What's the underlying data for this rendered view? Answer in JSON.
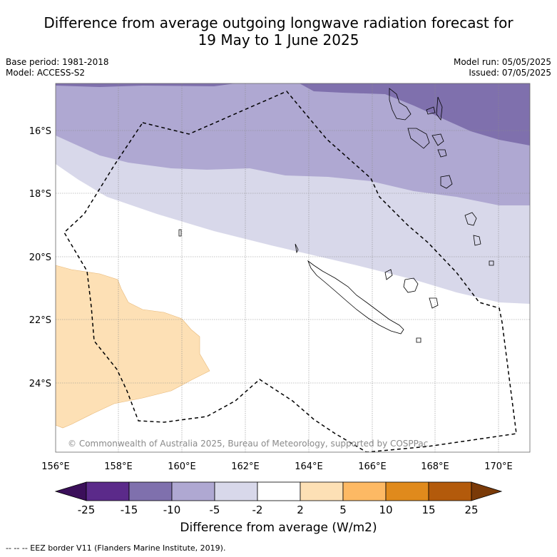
{
  "title": {
    "line1": "Difference from average outgoing longwave radiation forecast for",
    "line2": "19 May to 1 June 2025"
  },
  "meta": {
    "base_period": "Base period: 1981-2018",
    "model": "Model: ACCESS-S2",
    "model_run": "Model run: 05/05/2025",
    "issued": "Issued: 07/05/2025"
  },
  "map": {
    "lat_labels": [
      "16°S",
      "18°S",
      "20°S",
      "22°S",
      "24°S"
    ],
    "lon_labels": [
      "156°E",
      "158°E",
      "160°E",
      "162°E",
      "164°E",
      "166°E",
      "168°E",
      "170°E"
    ],
    "copyright": "© Commonwealth of Australia 2025, Bureau of Meteorology, supported by COSPPac"
  },
  "colorbar": {
    "ticks": [
      "-25",
      "-15",
      "-10",
      "-5",
      "-2",
      "2",
      "5",
      "10",
      "15",
      "25"
    ],
    "colors": [
      "#3b0f5a",
      "#5b2a8a",
      "#7f70ad",
      "#afa8d2",
      "#d8d8ea",
      "#ffffff",
      "#fde0b5",
      "#fdb964",
      "#e08a1c",
      "#b35a0b",
      "#7a3a08"
    ],
    "title": "Difference from average (W/m2)"
  },
  "footnote": "-- -- -- EEZ border V11 (Flanders Marine Institute, 2019)."
}
